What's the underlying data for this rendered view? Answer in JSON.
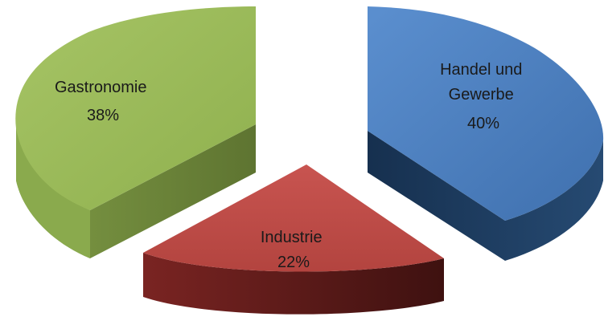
{
  "chart_data": {
    "type": "pie",
    "style": "3d-exploded",
    "title": "",
    "slices": [
      {
        "label_lines": [
          "Handel und",
          "Gewerbe"
        ],
        "value": 40,
        "value_label": "40%",
        "color": "#4F81BD",
        "side_color": "#1F3A5F"
      },
      {
        "label_lines": [
          "Industrie"
        ],
        "value": 22,
        "value_label": "22%",
        "color": "#C0504D",
        "side_color": "#5E1D1B"
      },
      {
        "label_lines": [
          "Gastronomie"
        ],
        "value": 38,
        "value_label": "38%",
        "color": "#9BBB59",
        "side_color": "#637A36"
      }
    ]
  }
}
